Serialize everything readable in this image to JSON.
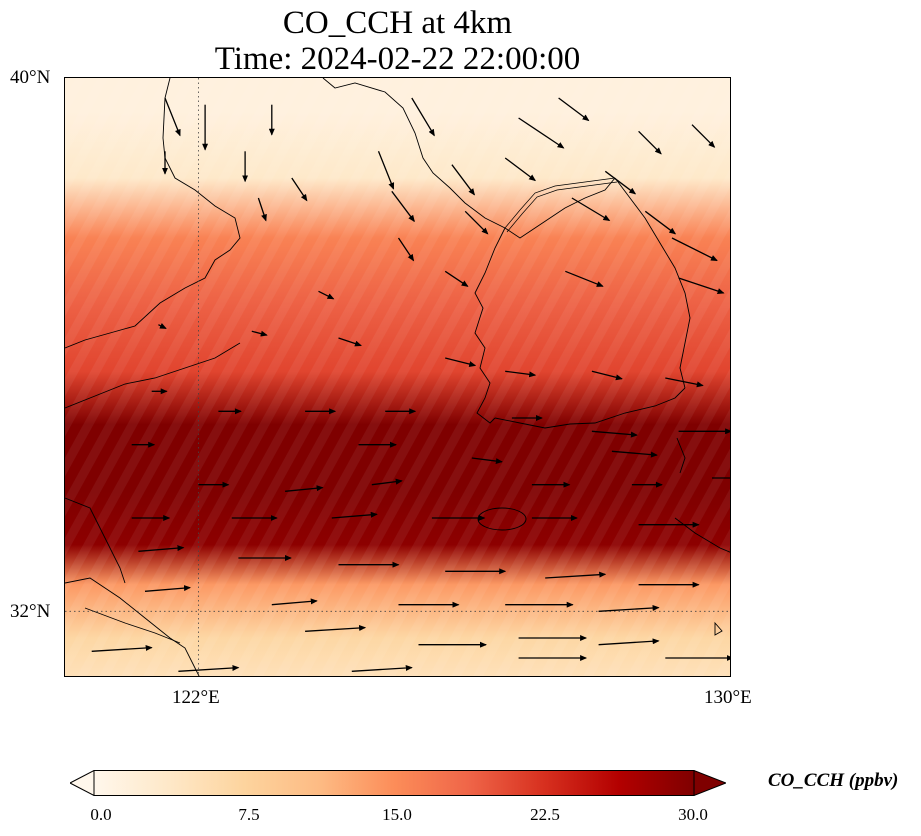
{
  "title": {
    "line1": "CO_CCH at 4km",
    "line2": "Time: 2024-02-22 22:00:00"
  },
  "axes": {
    "lat_labels": [
      "40°N",
      "32°N"
    ],
    "lon_labels": [
      "122°E",
      "130°E"
    ],
    "lon_range": [
      120,
      130
    ],
    "lat_range": [
      31,
      40
    ],
    "gridlines": "dotted at 122°E and 32°N"
  },
  "colorbar": {
    "label": "CO_CCH (ppbv)",
    "min": 0.0,
    "max": 30.0,
    "ticks": [
      "0.0",
      "7.5",
      "15.0",
      "22.5",
      "30.0"
    ],
    "extend": "both",
    "colormap": "OrRd",
    "colors": [
      "#fff7ec",
      "#fee8c8",
      "#fdd49e",
      "#fdbb84",
      "#fc8d59",
      "#ef6548",
      "#d7301f",
      "#b30000",
      "#7f0000"
    ]
  },
  "field_bands": [
    {
      "lat": 39.5,
      "value": 1.5
    },
    {
      "lat": 38.5,
      "value": 3.5
    },
    {
      "lat": 37.6,
      "value": 16.0
    },
    {
      "lat": 36.6,
      "value": 19.0
    },
    {
      "lat": 35.6,
      "value": 21.0
    },
    {
      "lat": 34.8,
      "value": 30.0
    },
    {
      "lat": 33.8,
      "value": 30.0
    },
    {
      "lat": 33.0,
      "value": 29.0
    },
    {
      "lat": 32.4,
      "value": 14.0
    },
    {
      "lat": 31.6,
      "value": 7.0
    },
    {
      "lat": 31.0,
      "value": 5.0
    }
  ],
  "wind_vectors": [
    [
      121.5,
      39.7,
      0.2,
      -0.5
    ],
    [
      122.1,
      39.6,
      0.0,
      -0.6
    ],
    [
      123.1,
      39.6,
      0.0,
      -0.4
    ],
    [
      125.2,
      39.7,
      0.3,
      -0.5
    ],
    [
      127.4,
      39.7,
      0.4,
      -0.3
    ],
    [
      126.8,
      39.4,
      0.6,
      -0.4
    ],
    [
      128.6,
      39.2,
      0.3,
      -0.3
    ],
    [
      129.4,
      39.3,
      0.3,
      -0.3
    ],
    [
      121.5,
      38.9,
      0.0,
      -0.3
    ],
    [
      122.7,
      38.9,
      0.0,
      -0.4
    ],
    [
      124.7,
      38.9,
      0.2,
      -0.5
    ],
    [
      125.8,
      38.7,
      0.3,
      -0.4
    ],
    [
      126.6,
      38.8,
      0.4,
      -0.3
    ],
    [
      128.1,
      38.6,
      0.4,
      -0.3
    ],
    [
      123.4,
      38.5,
      0.2,
      -0.3
    ],
    [
      122.9,
      38.2,
      0.1,
      -0.3
    ],
    [
      124.9,
      38.3,
      0.3,
      -0.4
    ],
    [
      126.0,
      38.0,
      0.3,
      -0.3
    ],
    [
      127.6,
      38.2,
      0.5,
      -0.3
    ],
    [
      128.7,
      38.0,
      0.4,
      -0.3
    ],
    [
      129.1,
      37.6,
      0.6,
      -0.3
    ],
    [
      125.0,
      37.6,
      0.2,
      -0.3
    ],
    [
      125.7,
      37.1,
      0.3,
      -0.2
    ],
    [
      127.5,
      37.1,
      0.5,
      -0.2
    ],
    [
      129.2,
      37.0,
      0.6,
      -0.2
    ],
    [
      123.8,
      36.8,
      0.2,
      -0.1
    ],
    [
      121.4,
      36.3,
      0.1,
      -0.05
    ],
    [
      122.8,
      36.2,
      0.2,
      -0.05
    ],
    [
      124.1,
      36.1,
      0.3,
      -0.1
    ],
    [
      125.7,
      35.8,
      0.4,
      -0.1
    ],
    [
      126.6,
      35.6,
      0.4,
      -0.05
    ],
    [
      127.9,
      35.6,
      0.4,
      -0.1
    ],
    [
      129.0,
      35.5,
      0.5,
      -0.1
    ],
    [
      121.3,
      35.3,
      0.2,
      0.0
    ],
    [
      122.3,
      35.0,
      0.3,
      0.0
    ],
    [
      123.6,
      35.0,
      0.4,
      0.0
    ],
    [
      124.8,
      35.0,
      0.4,
      0.0
    ],
    [
      126.7,
      34.9,
      0.4,
      0.0
    ],
    [
      127.9,
      34.7,
      0.6,
      -0.05
    ],
    [
      129.2,
      34.7,
      0.7,
      0.0
    ],
    [
      121.0,
      34.5,
      0.3,
      0.0
    ],
    [
      124.4,
      34.5,
      0.5,
      0.0
    ],
    [
      126.1,
      34.3,
      0.4,
      -0.05
    ],
    [
      128.2,
      34.4,
      0.6,
      -0.05
    ],
    [
      129.7,
      34.0,
      0.6,
      0.0
    ],
    [
      122.0,
      33.9,
      0.4,
      0.0
    ],
    [
      123.3,
      33.8,
      0.5,
      0.05
    ],
    [
      124.6,
      33.9,
      0.4,
      0.05
    ],
    [
      127.0,
      33.9,
      0.5,
      0.0
    ],
    [
      128.5,
      33.9,
      0.4,
      0.0
    ],
    [
      121.0,
      33.4,
      0.5,
      0.0
    ],
    [
      122.5,
      33.4,
      0.6,
      0.0
    ],
    [
      124.0,
      33.4,
      0.6,
      0.05
    ],
    [
      125.5,
      33.4,
      0.7,
      0.0
    ],
    [
      127.0,
      33.4,
      0.6,
      0.0
    ],
    [
      128.6,
      33.3,
      0.8,
      0.0
    ],
    [
      121.1,
      32.9,
      0.6,
      0.05
    ],
    [
      122.6,
      32.8,
      0.7,
      0.0
    ],
    [
      124.1,
      32.7,
      0.8,
      0.0
    ],
    [
      125.7,
      32.6,
      0.8,
      0.0
    ],
    [
      127.2,
      32.5,
      0.8,
      0.05
    ],
    [
      128.6,
      32.4,
      0.8,
      0.0
    ],
    [
      121.2,
      32.3,
      0.6,
      0.05
    ],
    [
      123.1,
      32.1,
      0.6,
      0.05
    ],
    [
      125.0,
      32.1,
      0.8,
      0.0
    ],
    [
      126.6,
      32.1,
      0.9,
      0.0
    ],
    [
      128.0,
      32.0,
      0.8,
      0.05
    ],
    [
      123.6,
      31.7,
      0.8,
      0.05
    ],
    [
      125.3,
      31.5,
      0.9,
      0.0
    ],
    [
      126.8,
      31.6,
      0.9,
      0.0
    ],
    [
      128.0,
      31.5,
      0.8,
      0.05
    ],
    [
      120.4,
      31.4,
      0.8,
      0.05
    ],
    [
      121.7,
      31.1,
      0.8,
      0.05
    ],
    [
      124.3,
      31.1,
      0.8,
      0.05
    ],
    [
      126.8,
      31.3,
      0.9,
      0.0
    ],
    [
      129.0,
      31.3,
      0.9,
      0.0
    ]
  ]
}
